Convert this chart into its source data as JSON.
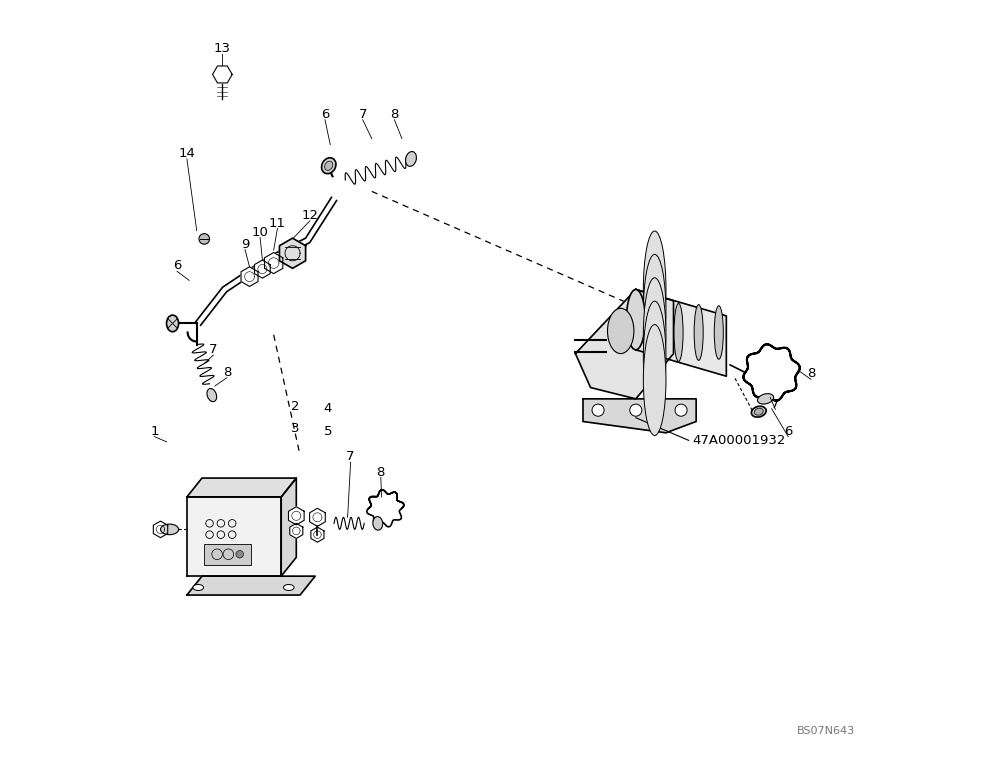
{
  "bg_color": "#ffffff",
  "line_color": "#000000",
  "label_color": "#000000",
  "fig_width": 10.0,
  "fig_height": 7.6,
  "dpi": 100,
  "watermark": "BS07N643",
  "part_number": "47A00001932"
}
